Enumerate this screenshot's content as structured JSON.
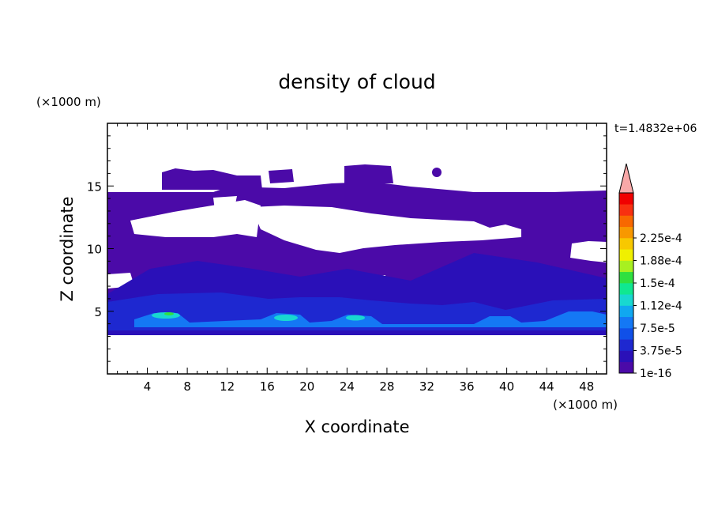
{
  "chart_data": {
    "type": "heatmap",
    "title": "density of cloud",
    "xlabel": "X coordinate",
    "ylabel": "Z coordinate",
    "x_unit": "(×1000 m)",
    "y_unit": "(×1000 m)",
    "time_label": "t=1.4832e+06",
    "xlim": [
      0,
      50
    ],
    "ylim": [
      0,
      20
    ],
    "x_ticks": [
      4,
      8,
      12,
      16,
      20,
      24,
      28,
      32,
      36,
      40,
      44,
      48
    ],
    "y_ticks": [
      5,
      10,
      15
    ],
    "colorbar": {
      "labels": [
        "1e-16",
        "3.75e-5",
        "7.5e-5",
        "1.12e-4",
        "1.5e-4",
        "1.88e-4",
        "2.25e-4"
      ],
      "colors": [
        "#4b0aa8",
        "#2a10b8",
        "#1e28d0",
        "#1050e8",
        "#1478f5",
        "#10a8f0",
        "#18d8d0",
        "#10e890",
        "#30e040",
        "#a8f020",
        "#f0f000",
        "#f8c800",
        "#f89800",
        "#f86800",
        "#f83010",
        "#f00000",
        "#f8a8a8"
      ],
      "overflow_color": "#f8a8a8"
    },
    "cloud_layer": {
      "cloud_base_km": 3.3,
      "upper_deck_top_km": 14.5,
      "isolated_tops_km": 16.5,
      "dense_core_centers_x_km": [
        6,
        17,
        25,
        39,
        47
      ],
      "dense_core_height_km": 4.5
    }
  }
}
